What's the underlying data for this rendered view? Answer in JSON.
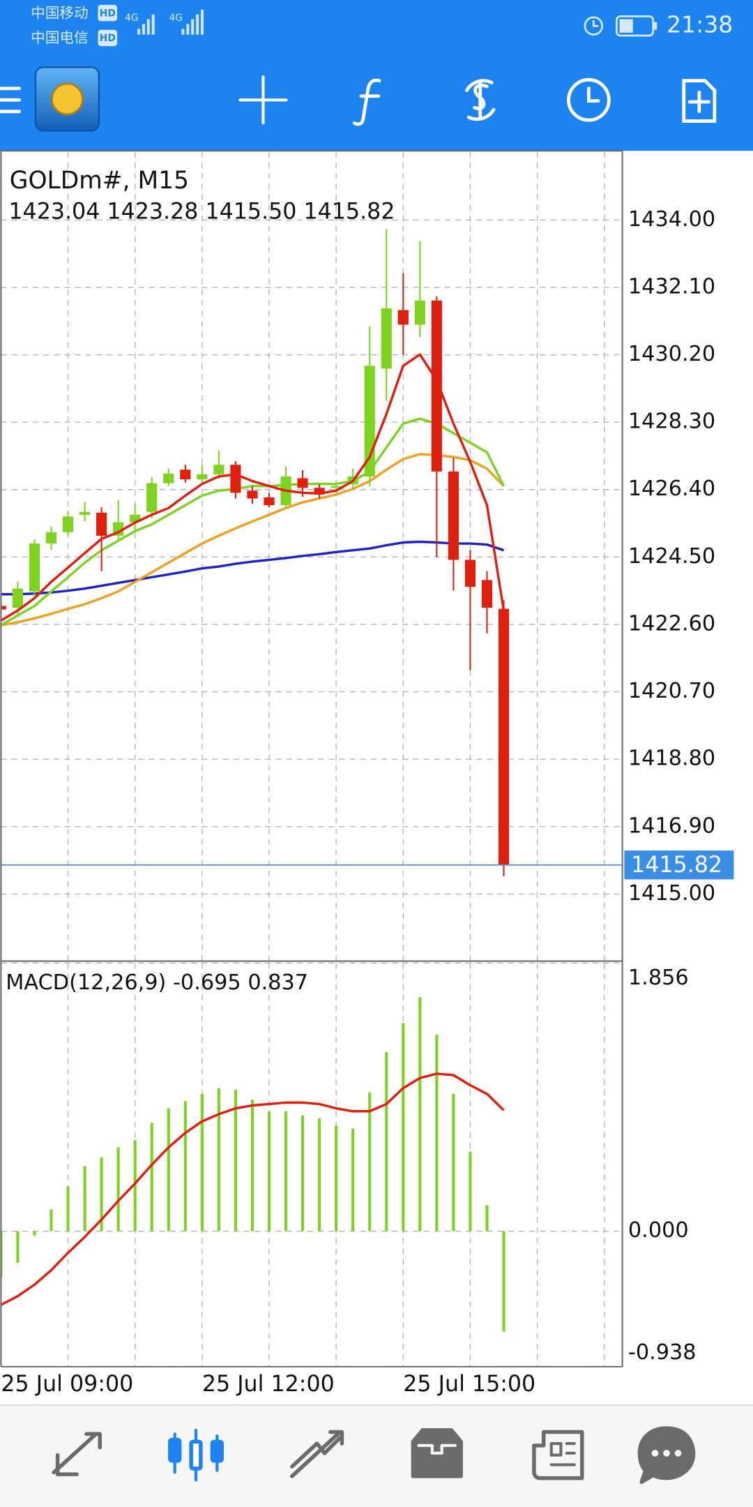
{
  "status_bar": {
    "carrier_1": "中国移动",
    "carrier_2": "中国电信",
    "hd": "HD",
    "network": "4G",
    "time": "21:38"
  },
  "chart_data": [
    {
      "type": "candlestick",
      "title": "GOLDm#, M15",
      "subtitle": "1423.04 1423.28 1415.50 1415.82",
      "categories": [
        "25 Jul 09:00",
        null,
        null,
        null,
        null,
        null,
        null,
        null,
        null,
        null,
        null,
        null,
        "25 Jul 12:00",
        null,
        null,
        null,
        null,
        null,
        null,
        null,
        null,
        null,
        null,
        null,
        "25 Jul 15:00",
        null,
        null,
        null,
        null,
        null,
        null
      ],
      "open": [
        1423.12,
        1423.07,
        1423.53,
        1424.88,
        1425.2,
        1425.69,
        1425.75,
        1425.1,
        1425.48,
        1425.77,
        1426.58,
        1426.96,
        1426.69,
        1426.83,
        1427.1,
        1426.37,
        1426.18,
        1425.96,
        1426.72,
        1426.45,
        1426.45,
        1426.55,
        1426.77,
        1429.81,
        1431.46,
        1431.05,
        1431.73,
        1426.91,
        1424.42,
        1423.85,
        1423.04
      ],
      "high": [
        1423.2,
        1423.8,
        1425.0,
        1425.35,
        1425.8,
        1426.05,
        1425.9,
        1426.1,
        1426.0,
        1426.75,
        1427.0,
        1427.1,
        1427.1,
        1427.5,
        1427.2,
        1426.5,
        1426.3,
        1427.05,
        1426.95,
        1426.55,
        1426.6,
        1427.0,
        1431.0,
        1433.75,
        1432.5,
        1433.4,
        1431.85,
        1427.3,
        1424.7,
        1424.1,
        1423.28
      ],
      "low": [
        1422.9,
        1422.85,
        1423.4,
        1424.7,
        1425.1,
        1425.5,
        1424.1,
        1425.0,
        1425.2,
        1425.6,
        1426.5,
        1426.6,
        1426.6,
        1426.7,
        1426.15,
        1426.0,
        1425.9,
        1425.9,
        1426.2,
        1426.15,
        1426.3,
        1426.4,
        1426.5,
        1428.9,
        1430.2,
        1430.7,
        1424.5,
        1423.55,
        1421.31,
        1422.35,
        1415.5
      ],
      "close": [
        1423.02,
        1423.61,
        1424.88,
        1425.2,
        1425.64,
        1425.77,
        1425.1,
        1425.48,
        1425.69,
        1426.58,
        1426.85,
        1426.69,
        1426.83,
        1427.1,
        1426.31,
        1426.15,
        1425.96,
        1426.77,
        1426.45,
        1426.26,
        1426.5,
        1426.77,
        1429.89,
        1431.51,
        1431.05,
        1431.73,
        1426.91,
        1424.42,
        1423.66,
        1423.07,
        1415.82
      ],
      "up_color": "#7ed321",
      "down_color": "#e0200f",
      "series": [
        {
          "color": "#1f23c4",
          "values": [
            1423.45,
            1423.45,
            1423.47,
            1423.5,
            1423.55,
            1423.61,
            1423.69,
            1423.77,
            1423.85,
            1423.93,
            1424.01,
            1424.09,
            1424.18,
            1424.23,
            1424.31,
            1424.37,
            1424.42,
            1424.47,
            1424.53,
            1424.58,
            1424.64,
            1424.69,
            1424.74,
            1424.83,
            1424.91,
            1424.93,
            1424.91,
            1424.88,
            1424.88,
            1424.85,
            1424.69
          ]
        },
        {
          "color": "#f0a020",
          "values": [
            1422.58,
            1422.66,
            1422.77,
            1422.9,
            1423.04,
            1423.17,
            1423.34,
            1423.53,
            1423.8,
            1424.07,
            1424.34,
            1424.61,
            1424.88,
            1425.1,
            1425.31,
            1425.5,
            1425.69,
            1425.88,
            1426.04,
            1426.15,
            1426.26,
            1426.42,
            1426.64,
            1426.96,
            1427.26,
            1427.4,
            1427.37,
            1427.32,
            1427.23,
            1426.99,
            1426.5
          ]
        },
        {
          "color": "#7ed321",
          "values": [
            1422.58,
            1422.85,
            1423.12,
            1423.53,
            1423.93,
            1424.34,
            1424.69,
            1424.96,
            1425.23,
            1425.42,
            1425.69,
            1425.96,
            1426.23,
            1426.37,
            1426.42,
            1426.5,
            1426.5,
            1426.53,
            1426.56,
            1426.56,
            1426.56,
            1426.64,
            1426.91,
            1427.59,
            1428.26,
            1428.4,
            1428.26,
            1427.99,
            1427.72,
            1427.45,
            1426.5
          ]
        },
        {
          "color": "#e0200f",
          "values": [
            1422.71,
            1422.99,
            1423.34,
            1423.8,
            1424.2,
            1424.61,
            1425.01,
            1425.2,
            1425.47,
            1425.69,
            1425.88,
            1426.23,
            1426.56,
            1426.77,
            1426.83,
            1426.64,
            1426.5,
            1426.37,
            1426.31,
            1426.29,
            1426.37,
            1426.64,
            1427.32,
            1428.53,
            1429.89,
            1430.21,
            1429.48,
            1428.26,
            1427.18,
            1425.96,
            1422.99
          ]
        }
      ],
      "ylim": [
        1413.11,
        1435.92
      ],
      "yticks": [
        {
          "value": 1415,
          "label": "1415.00"
        },
        {
          "value": 1416.9,
          "label": "1416.90"
        },
        {
          "value": 1418.8,
          "label": "1418.80"
        },
        {
          "value": 1420.7,
          "label": "1420.70"
        },
        {
          "value": 1422.6,
          "label": "1422.60"
        },
        {
          "value": 1424.5,
          "label": "1424.50"
        },
        {
          "value": 1426.4,
          "label": "1426.40"
        },
        {
          "value": 1428.3,
          "label": "1428.30"
        },
        {
          "value": 1430.2,
          "label": "1430.20"
        },
        {
          "value": 1432.1,
          "label": "1432.10"
        },
        {
          "value": 1434,
          "label": "1434.00"
        }
      ],
      "grid": true
    },
    {
      "type": "macd",
      "title": "MACD(12,26,9)",
      "values": [
        -0.32,
        -0.22,
        -0.03,
        0.15,
        0.31,
        0.45,
        0.51,
        0.58,
        0.63,
        0.75,
        0.85,
        0.9,
        0.95,
        0.99,
        0.98,
        0.91,
        0.83,
        0.83,
        0.8,
        0.78,
        0.73,
        0.71,
        0.96,
        1.24,
        1.44,
        1.62,
        1.36,
        0.95,
        0.55,
        0.18,
        -0.695
      ],
      "color": "#7ed321",
      "series": [
        {
          "color": "#e0200f",
          "values": [
            -0.51,
            -0.45,
            -0.37,
            -0.27,
            -0.15,
            -0.04,
            0.08,
            0.21,
            0.33,
            0.46,
            0.58,
            0.68,
            0.76,
            0.81,
            0.85,
            0.87,
            0.88,
            0.89,
            0.89,
            0.88,
            0.85,
            0.83,
            0.83,
            0.88,
            0.99,
            1.06,
            1.09,
            1.08,
            1.01,
            0.95,
            0.837
          ]
        }
      ],
      "ylim": [
        -0.938,
        1.856
      ],
      "yticks": [
        -0.938,
        {
          "value": 0,
          "label": "0.000"
        },
        1.856
      ],
      "grid": true
    }
  ]
}
